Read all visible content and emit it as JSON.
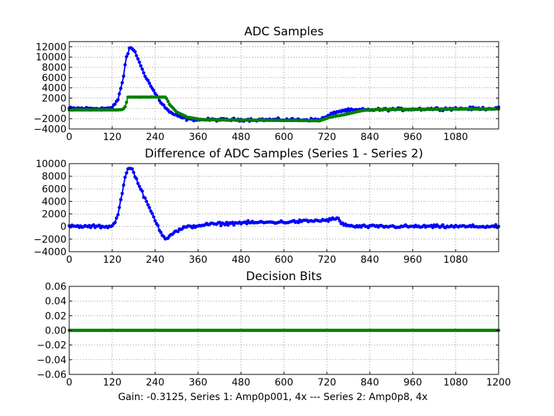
{
  "figure": {
    "caption": "Gain: -0.3125, Series 1: Amp0p001, 4x --- Series 2: Amp0p8, 4x"
  },
  "chart_data": [
    {
      "type": "scatter",
      "title": "ADC Samples",
      "xlim": [
        0,
        1200
      ],
      "ylim": [
        -4000,
        13000
      ],
      "xticks": [
        0,
        120,
        240,
        360,
        480,
        600,
        720,
        840,
        960,
        1080
      ],
      "yticks": [
        -4000,
        -2000,
        0,
        2000,
        4000,
        6000,
        8000,
        10000,
        12000
      ],
      "grid": true,
      "series": [
        {
          "color": "#0000ff",
          "marker": "dot",
          "noise": 250,
          "points": [
            [
              0,
              0
            ],
            [
              100,
              0
            ],
            [
              120,
              100
            ],
            [
              135,
              1500
            ],
            [
              150,
              5500
            ],
            [
              160,
              10000
            ],
            [
              168,
              11600
            ],
            [
              175,
              11700
            ],
            [
              185,
              11000
            ],
            [
              195,
              9000
            ],
            [
              215,
              6000
            ],
            [
              235,
              3500
            ],
            [
              255,
              1300
            ],
            [
              275,
              -400
            ],
            [
              300,
              -1500
            ],
            [
              330,
              -2100
            ],
            [
              380,
              -2200
            ],
            [
              700,
              -2200
            ],
            [
              720,
              -1600
            ],
            [
              745,
              -700
            ],
            [
              770,
              -400
            ],
            [
              820,
              -300
            ],
            [
              900,
              -200
            ],
            [
              1000,
              -100
            ],
            [
              1200,
              0
            ]
          ]
        },
        {
          "color": "#008000",
          "marker": "dot",
          "noise": 20,
          "points": [
            [
              0,
              -300
            ],
            [
              135,
              -300
            ],
            [
              150,
              -200
            ],
            [
              158,
              500
            ],
            [
              163,
              2200
            ],
            [
              270,
              2200
            ],
            [
              280,
              800
            ],
            [
              300,
              -700
            ],
            [
              330,
              -1700
            ],
            [
              370,
              -2200
            ],
            [
              700,
              -2400
            ],
            [
              730,
              -1700
            ],
            [
              770,
              -1200
            ],
            [
              820,
              -400
            ],
            [
              860,
              -200
            ],
            [
              1200,
              -100
            ]
          ]
        }
      ]
    },
    {
      "type": "scatter",
      "title": "Difference of ADC Samples (Series 1 - Series 2)",
      "xlim": [
        0,
        1200
      ],
      "ylim": [
        -4000,
        10000
      ],
      "xticks": [
        0,
        120,
        240,
        360,
        480,
        600,
        720,
        840,
        960,
        1080
      ],
      "yticks": [
        -4000,
        -2000,
        0,
        2000,
        4000,
        6000,
        8000,
        10000
      ],
      "grid": true,
      "series": [
        {
          "color": "#0000ff",
          "marker": "dot",
          "noise": 230,
          "points": [
            [
              0,
              0
            ],
            [
              110,
              0
            ],
            [
              120,
              100
            ],
            [
              135,
              1500
            ],
            [
              150,
              6000
            ],
            [
              160,
              8800
            ],
            [
              168,
              9300
            ],
            [
              178,
              9000
            ],
            [
              195,
              6500
            ],
            [
              215,
              4000
            ],
            [
              240,
              1000
            ],
            [
              255,
              -800
            ],
            [
              270,
              -2000
            ],
            [
              285,
              -1200
            ],
            [
              320,
              -200
            ],
            [
              380,
              300
            ],
            [
              480,
              600
            ],
            [
              600,
              700
            ],
            [
              720,
              1000
            ],
            [
              750,
              1300
            ],
            [
              760,
              500
            ],
            [
              790,
              0
            ],
            [
              900,
              0
            ],
            [
              1200,
              0
            ]
          ]
        }
      ]
    },
    {
      "type": "scatter",
      "title": "Decision Bits",
      "xlim": [
        0,
        1200
      ],
      "ylim": [
        -0.06,
        0.06
      ],
      "xticks": [
        0,
        120,
        240,
        360,
        480,
        600,
        720,
        840,
        960,
        1080,
        1200
      ],
      "yticks": [
        -0.06,
        -0.04,
        -0.02,
        0.0,
        0.02,
        0.04,
        0.06
      ],
      "ytick_labels": [
        "−0.06",
        "−0.04",
        "−0.02",
        "0.00",
        "0.02",
        "0.04",
        "0.06"
      ],
      "grid": true,
      "series": [
        {
          "color": "#008000",
          "marker": "dot",
          "noise": 0,
          "points": [
            [
              0,
              0
            ],
            [
              1200,
              0
            ]
          ]
        }
      ]
    }
  ]
}
